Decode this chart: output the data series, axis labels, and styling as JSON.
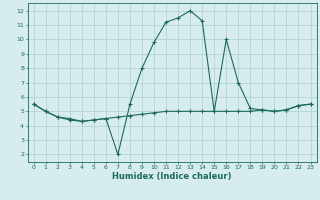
{
  "xlabel": "Humidex (Indice chaleur)",
  "background_color": "#d7ecec",
  "grid_color": "#aed0d0",
  "line_color": "#1a6b5a",
  "xlim": [
    -0.5,
    23.5
  ],
  "ylim": [
    1.5,
    12.5
  ],
  "xticks": [
    0,
    1,
    2,
    3,
    4,
    5,
    6,
    7,
    8,
    9,
    10,
    11,
    12,
    13,
    14,
    15,
    16,
    17,
    18,
    19,
    20,
    21,
    22,
    23
  ],
  "yticks": [
    2,
    3,
    4,
    5,
    6,
    7,
    8,
    9,
    10,
    11,
    12
  ],
  "line1_x": [
    0,
    1,
    2,
    3,
    4,
    5,
    6,
    7,
    8,
    9,
    10,
    11,
    12,
    13,
    14,
    15,
    16,
    17,
    18,
    19,
    20,
    21,
    22,
    23
  ],
  "line1_y": [
    5.5,
    5.0,
    4.6,
    4.4,
    4.3,
    4.4,
    4.5,
    2.0,
    5.5,
    8.0,
    9.8,
    11.2,
    11.5,
    12.0,
    11.3,
    5.0,
    10.0,
    7.0,
    5.2,
    5.1,
    5.0,
    5.1,
    5.4,
    5.5
  ],
  "line2_x": [
    0,
    1,
    2,
    3,
    4,
    5,
    6,
    7,
    8,
    9,
    10,
    11,
    12,
    13,
    14,
    15,
    16,
    17,
    18,
    19,
    20,
    21,
    22,
    23
  ],
  "line2_y": [
    5.5,
    5.0,
    4.6,
    4.5,
    4.3,
    4.4,
    4.5,
    4.6,
    4.7,
    4.8,
    4.9,
    5.0,
    5.0,
    5.0,
    5.0,
    5.0,
    5.0,
    5.0,
    5.0,
    5.1,
    5.0,
    5.1,
    5.4,
    5.5
  ]
}
